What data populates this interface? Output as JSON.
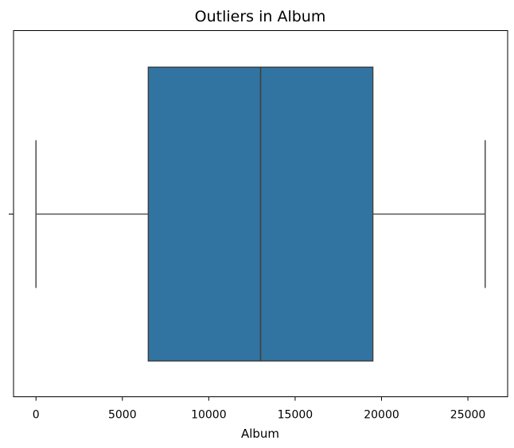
{
  "chart_data": {
    "type": "box",
    "title": "Outliers in Album",
    "xlabel": "Album",
    "ylabel": "",
    "xlim": [
      -1300,
      27300
    ],
    "xticks": [
      0,
      5000,
      10000,
      15000,
      20000,
      25000
    ],
    "xtick_labels": [
      "0",
      "5000",
      "10000",
      "15000",
      "20000",
      "25000"
    ],
    "grid": false,
    "box": {
      "whisker_low": 0,
      "q1": 6500,
      "median": 13000,
      "q3": 19500,
      "whisker_high": 26000
    },
    "outliers": [],
    "colors": {
      "box_fill": "#3274a1",
      "box_edge": "#3f3f3f",
      "whisker": "#555555",
      "median": "#3f3f3f",
      "axes_edge": "#000000"
    }
  }
}
